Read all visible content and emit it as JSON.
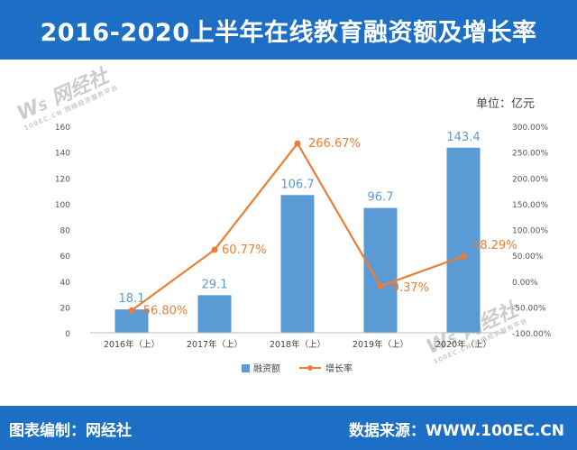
{
  "header": {
    "title": "2016-2020上半年在线教育融资额及增长率"
  },
  "unit_label": "单位：亿元",
  "footer": {
    "left": "图表编制：网经社",
    "right": "数据来源：WWW.100EC.CN"
  },
  "watermark": {
    "logo": "W S 网经社",
    "sub": "100EC.CN  网络经济服务平台"
  },
  "colors": {
    "header_bg": "#1d6fc5",
    "bar": "#5b9bd5",
    "line": "#ed7d31",
    "bar_label": "#5b9bd5",
    "line_label": "#ed7d31"
  },
  "chart_data": {
    "type": "bar",
    "title": "2016-2020上半年在线教育融资额及增长率",
    "categories": [
      "2016年（上）",
      "2017年（上）",
      "2018年（上）",
      "2019年（上）",
      "2020年（上）"
    ],
    "series": [
      {
        "name": "融资额",
        "type": "bar",
        "axis": "left",
        "values": [
          18.1,
          29.1,
          106.7,
          96.7,
          143.4
        ],
        "labels": [
          "18.1",
          "29.1",
          "106.7",
          "96.7",
          "143.4"
        ]
      },
      {
        "name": "增长率",
        "type": "line",
        "axis": "right",
        "values": [
          -56.8,
          60.77,
          266.67,
          -9.37,
          48.29
        ],
        "labels": [
          "-56.80%",
          "60.77%",
          "266.67%",
          "-9.37%",
          "48.29%"
        ]
      }
    ],
    "y_left": {
      "min": 0,
      "max": 160,
      "step": 20,
      "ticks": [
        "0",
        "20",
        "40",
        "60",
        "80",
        "100",
        "120",
        "140",
        "160"
      ]
    },
    "y_right": {
      "min": -100,
      "max": 300,
      "step": 50,
      "ticks": [
        "-100.00%",
        "-50.00%",
        "0.00%",
        "50.00%",
        "100.00%",
        "150.00%",
        "200.00%",
        "250.00%",
        "300.00%"
      ]
    },
    "legend": {
      "position": "bottom",
      "items": [
        "融资额",
        "增长率"
      ]
    },
    "grid": false
  }
}
